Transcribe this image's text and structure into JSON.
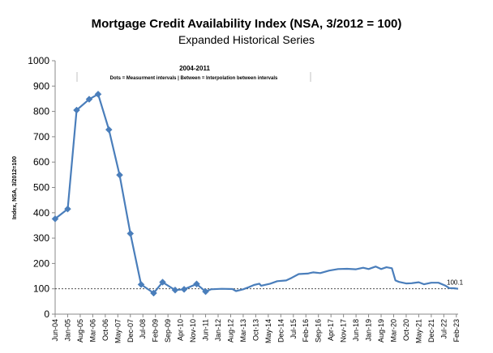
{
  "chart_data": {
    "type": "line",
    "title": "Mortgage Credit Availability Index (NSA, 3/2012 = 100)",
    "subtitle": "Expanded Historical Series",
    "ylabel": "Index, NSA, 3/2012=100",
    "xlabel": "",
    "ylim": [
      0,
      1000
    ],
    "yticks": [
      "0",
      "100",
      "200",
      "300",
      "400",
      "500",
      "600",
      "700",
      "800",
      "900",
      "1000"
    ],
    "grid": false,
    "legend": "none",
    "x_tick_labels": [
      "Jun-04",
      "Jan-05",
      "Aug-05",
      "Mar-06",
      "Oct-06",
      "May-07",
      "Dec-07",
      "Jul-08",
      "Feb-09",
      "Sep-09",
      "Apr-10",
      "Nov-10",
      "Jun-11",
      "Jan-12",
      "Aug-12",
      "Mar-13",
      "Oct-13",
      "May-14",
      "Dec-14",
      "Jul-15",
      "Feb-16",
      "Sep-16",
      "Apr-17",
      "Nov-17",
      "Jun-18",
      "Jan-19",
      "Aug-19",
      "Mar-20",
      "Oct-20",
      "May-21",
      "Dec-21",
      "Jul-22",
      "Feb-23"
    ],
    "annotation": {
      "heading": "2004-2011",
      "text": "Dots = Measurment intervals  |  Between = Interpolation between intervals"
    },
    "reference_line": {
      "value": 100,
      "style": "dashed"
    },
    "end_label": "100.1",
    "color": "#4a7ebb",
    "series": [
      {
        "name": "",
        "points": [
          {
            "x": "2004-06",
            "y": 376
          },
          {
            "x": "2005-01",
            "y": 415
          },
          {
            "x": "2005-06",
            "y": 805
          },
          {
            "x": "2006-01",
            "y": 848
          },
          {
            "x": "2006-06",
            "y": 868
          },
          {
            "x": "2006-12",
            "y": 728
          },
          {
            "x": "2007-06",
            "y": 549
          },
          {
            "x": "2007-12",
            "y": 318
          },
          {
            "x": "2008-06",
            "y": 117
          },
          {
            "x": "2009-01",
            "y": 83
          },
          {
            "x": "2009-06",
            "y": 126
          },
          {
            "x": "2010-01",
            "y": 95
          },
          {
            "x": "2010-06",
            "y": 98
          },
          {
            "x": "2011-01",
            "y": 119
          },
          {
            "x": "2011-06",
            "y": 89
          },
          {
            "x": "2011-09",
            "y": 98
          },
          {
            "x": "2012-03",
            "y": 100
          },
          {
            "x": "2012-09",
            "y": 99
          },
          {
            "x": "2012-11",
            "y": 91
          },
          {
            "x": "2013-03",
            "y": 98
          },
          {
            "x": "2013-06",
            "y": 106
          },
          {
            "x": "2013-09",
            "y": 115
          },
          {
            "x": "2013-12",
            "y": 120
          },
          {
            "x": "2014-01",
            "y": 112
          },
          {
            "x": "2014-06",
            "y": 120
          },
          {
            "x": "2014-10",
            "y": 130
          },
          {
            "x": "2015-03",
            "y": 133
          },
          {
            "x": "2015-06",
            "y": 143
          },
          {
            "x": "2015-10",
            "y": 158
          },
          {
            "x": "2016-03",
            "y": 160
          },
          {
            "x": "2016-06",
            "y": 165
          },
          {
            "x": "2016-10",
            "y": 162
          },
          {
            "x": "2017-03",
            "y": 172
          },
          {
            "x": "2017-08",
            "y": 178
          },
          {
            "x": "2018-01",
            "y": 179
          },
          {
            "x": "2018-06",
            "y": 177
          },
          {
            "x": "2018-10",
            "y": 183
          },
          {
            "x": "2019-01",
            "y": 178
          },
          {
            "x": "2019-05",
            "y": 188
          },
          {
            "x": "2019-08",
            "y": 178
          },
          {
            "x": "2019-11",
            "y": 185
          },
          {
            "x": "2020-02",
            "y": 181
          },
          {
            "x": "2020-04",
            "y": 133
          },
          {
            "x": "2020-06",
            "y": 127
          },
          {
            "x": "2020-10",
            "y": 121
          },
          {
            "x": "2021-01",
            "y": 122
          },
          {
            "x": "2021-05",
            "y": 126
          },
          {
            "x": "2021-08",
            "y": 118
          },
          {
            "x": "2021-12",
            "y": 124
          },
          {
            "x": "2022-04",
            "y": 124
          },
          {
            "x": "2022-08",
            "y": 112
          },
          {
            "x": "2022-10",
            "y": 103
          },
          {
            "x": "2023-01",
            "y": 102
          },
          {
            "x": "2023-03",
            "y": 100.1
          }
        ],
        "markers": [
          "2004-06",
          "2005-01",
          "2005-06",
          "2006-01",
          "2006-06",
          "2006-12",
          "2007-06",
          "2007-12",
          "2008-06",
          "2009-01",
          "2009-06",
          "2010-01",
          "2010-06",
          "2011-01",
          "2011-06"
        ]
      }
    ]
  }
}
